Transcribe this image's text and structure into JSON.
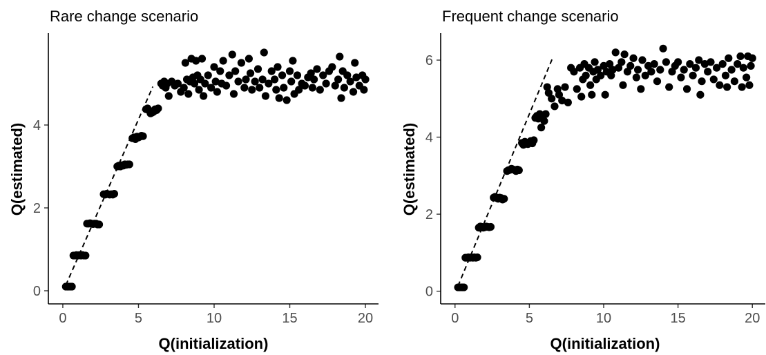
{
  "chart_data": [
    {
      "type": "scatter",
      "title": "Rare change scenario",
      "xlabel": "Q(initialization)",
      "ylabel": "Q(estimated)",
      "xlim": [
        -0.5,
        20.5
      ],
      "ylim": [
        -0.15,
        6.15
      ],
      "xticks": [
        0,
        5,
        10,
        15,
        20
      ],
      "yticks": [
        0,
        2,
        4
      ],
      "reference_line": {
        "style": "dashed",
        "slope": 0.833,
        "intercept": -0.03,
        "x_range": [
          0.2,
          5.95
        ]
      },
      "grid": false,
      "points": [
        [
          0.2,
          0.1
        ],
        [
          0.3,
          0.1
        ],
        [
          0.4,
          0.1
        ],
        [
          0.5,
          0.1
        ],
        [
          0.6,
          0.1
        ],
        [
          0.7,
          0.85
        ],
        [
          0.8,
          0.85
        ],
        [
          0.9,
          0.86
        ],
        [
          1.0,
          0.85
        ],
        [
          1.1,
          0.86
        ],
        [
          1.2,
          0.85
        ],
        [
          1.3,
          0.86
        ],
        [
          1.4,
          0.85
        ],
        [
          1.5,
          0.85
        ],
        [
          1.6,
          1.62
        ],
        [
          1.7,
          1.62
        ],
        [
          1.8,
          1.63
        ],
        [
          1.9,
          1.62
        ],
        [
          2.0,
          1.61
        ],
        [
          2.1,
          1.62
        ],
        [
          2.2,
          1.62
        ],
        [
          2.3,
          1.6
        ],
        [
          2.4,
          1.6
        ],
        [
          2.7,
          2.33
        ],
        [
          2.8,
          2.32
        ],
        [
          2.9,
          2.34
        ],
        [
          3.0,
          2.33
        ],
        [
          3.1,
          2.32
        ],
        [
          3.2,
          2.33
        ],
        [
          3.3,
          2.32
        ],
        [
          3.4,
          2.34
        ],
        [
          3.6,
          3.0
        ],
        [
          3.7,
          3.02
        ],
        [
          3.8,
          3.0
        ],
        [
          3.9,
          3.03
        ],
        [
          4.0,
          3.02
        ],
        [
          4.1,
          3.05
        ],
        [
          4.2,
          3.04
        ],
        [
          4.3,
          3.05
        ],
        [
          4.4,
          3.05
        ],
        [
          4.6,
          3.68
        ],
        [
          4.7,
          3.7
        ],
        [
          4.8,
          3.66
        ],
        [
          4.9,
          3.72
        ],
        [
          5.0,
          3.7
        ],
        [
          5.1,
          3.72
        ],
        [
          5.2,
          3.74
        ],
        [
          5.3,
          3.73
        ],
        [
          5.5,
          4.38
        ],
        [
          5.6,
          4.4
        ],
        [
          5.7,
          4.35
        ],
        [
          5.8,
          4.28
        ],
        [
          5.9,
          4.3
        ],
        [
          6.0,
          4.32
        ],
        [
          6.1,
          4.38
        ],
        [
          6.2,
          4.36
        ],
        [
          6.3,
          4.4
        ],
        [
          6.5,
          5.0
        ],
        [
          6.6,
          4.95
        ],
        [
          6.7,
          5.05
        ],
        [
          6.8,
          4.9
        ],
        [
          6.9,
          5.0
        ],
        [
          7.0,
          4.7
        ],
        [
          7.2,
          5.05
        ],
        [
          7.4,
          4.95
        ],
        [
          7.6,
          5.0
        ],
        [
          7.8,
          4.8
        ],
        [
          8.0,
          4.9
        ],
        [
          8.1,
          5.5
        ],
        [
          8.2,
          5.1
        ],
        [
          8.3,
          4.75
        ],
        [
          8.4,
          5.05
        ],
        [
          8.5,
          5.6
        ],
        [
          8.6,
          5.15
        ],
        [
          8.7,
          5.0
        ],
        [
          8.8,
          5.55
        ],
        [
          8.9,
          5.2
        ],
        [
          9.0,
          4.85
        ],
        [
          9.1,
          5.1
        ],
        [
          9.2,
          5.6
        ],
        [
          9.3,
          4.7
        ],
        [
          9.4,
          5.0
        ],
        [
          9.6,
          5.2
        ],
        [
          9.8,
          4.9
        ],
        [
          10.0,
          5.4
        ],
        [
          10.1,
          5.05
        ],
        [
          10.2,
          4.8
        ],
        [
          10.4,
          5.3
        ],
        [
          10.5,
          5.0
        ],
        [
          10.6,
          5.55
        ],
        [
          10.8,
          4.95
        ],
        [
          11.0,
          5.2
        ],
        [
          11.2,
          5.7
        ],
        [
          11.3,
          4.75
        ],
        [
          11.4,
          5.3
        ],
        [
          11.6,
          5.05
        ],
        [
          11.8,
          5.5
        ],
        [
          12.0,
          4.9
        ],
        [
          12.1,
          5.1
        ],
        [
          12.3,
          5.6
        ],
        [
          12.4,
          5.25
        ],
        [
          12.5,
          4.85
        ],
        [
          12.7,
          5.05
        ],
        [
          12.9,
          5.35
        ],
        [
          13.0,
          4.9
        ],
        [
          13.2,
          5.1
        ],
        [
          13.3,
          5.75
        ],
        [
          13.4,
          4.7
        ],
        [
          13.6,
          5.0
        ],
        [
          13.8,
          5.3
        ],
        [
          14.0,
          5.1
        ],
        [
          14.1,
          4.85
        ],
        [
          14.2,
          5.4
        ],
        [
          14.3,
          4.65
        ],
        [
          14.5,
          5.2
        ],
        [
          14.6,
          4.9
        ],
        [
          14.8,
          4.6
        ],
        [
          15.0,
          5.3
        ],
        [
          15.1,
          5.05
        ],
        [
          15.2,
          5.55
        ],
        [
          15.3,
          4.75
        ],
        [
          15.5,
          5.2
        ],
        [
          15.6,
          4.85
        ],
        [
          15.8,
          5.0
        ],
        [
          16.0,
          4.95
        ],
        [
          16.2,
          5.15
        ],
        [
          16.4,
          5.25
        ],
        [
          16.5,
          4.9
        ],
        [
          16.6,
          5.1
        ],
        [
          16.8,
          5.35
        ],
        [
          17.0,
          4.85
        ],
        [
          17.2,
          5.2
        ],
        [
          17.4,
          5.0
        ],
        [
          17.6,
          5.3
        ],
        [
          17.8,
          5.4
        ],
        [
          18.0,
          4.95
        ],
        [
          18.2,
          5.1
        ],
        [
          18.3,
          5.65
        ],
        [
          18.4,
          4.65
        ],
        [
          18.5,
          5.3
        ],
        [
          18.6,
          4.9
        ],
        [
          18.8,
          5.2
        ],
        [
          19.0,
          5.05
        ],
        [
          19.2,
          4.8
        ],
        [
          19.3,
          5.5
        ],
        [
          19.4,
          5.15
        ],
        [
          19.6,
          4.95
        ],
        [
          19.8,
          5.2
        ],
        [
          19.9,
          4.85
        ],
        [
          20.0,
          5.1
        ]
      ]
    },
    {
      "type": "scatter",
      "title": "Frequent change scenario",
      "xlabel": "Q(initialization)",
      "ylabel": "Q(estimated)",
      "xlim": [
        -0.5,
        20.5
      ],
      "ylim": [
        -0.15,
        6.7
      ],
      "xticks": [
        0,
        5,
        10,
        15,
        20
      ],
      "yticks": [
        0,
        2,
        4,
        6
      ],
      "reference_line": {
        "style": "dashed",
        "slope": 0.93,
        "intercept": -0.05,
        "x_range": [
          0.2,
          6.55
        ]
      },
      "grid": false,
      "points": [
        [
          0.2,
          0.1
        ],
        [
          0.3,
          0.1
        ],
        [
          0.4,
          0.1
        ],
        [
          0.5,
          0.1
        ],
        [
          0.6,
          0.1
        ],
        [
          0.7,
          0.87
        ],
        [
          0.8,
          0.87
        ],
        [
          0.9,
          0.88
        ],
        [
          1.0,
          0.87
        ],
        [
          1.1,
          0.88
        ],
        [
          1.2,
          0.87
        ],
        [
          1.3,
          0.88
        ],
        [
          1.4,
          0.87
        ],
        [
          1.5,
          0.88
        ],
        [
          1.6,
          1.65
        ],
        [
          1.7,
          1.68
        ],
        [
          1.8,
          1.67
        ],
        [
          1.9,
          1.65
        ],
        [
          2.0,
          1.66
        ],
        [
          2.1,
          1.68
        ],
        [
          2.2,
          1.67
        ],
        [
          2.3,
          1.66
        ],
        [
          2.4,
          1.67
        ],
        [
          2.6,
          2.43
        ],
        [
          2.7,
          2.45
        ],
        [
          2.8,
          2.42
        ],
        [
          2.9,
          2.4
        ],
        [
          3.0,
          2.43
        ],
        [
          3.1,
          2.42
        ],
        [
          3.2,
          2.38
        ],
        [
          3.3,
          2.4
        ],
        [
          3.5,
          3.12
        ],
        [
          3.6,
          3.14
        ],
        [
          3.7,
          3.15
        ],
        [
          3.8,
          3.18
        ],
        [
          3.9,
          3.16
        ],
        [
          4.0,
          3.15
        ],
        [
          4.1,
          3.12
        ],
        [
          4.2,
          3.16
        ],
        [
          4.3,
          3.14
        ],
        [
          4.5,
          3.85
        ],
        [
          4.6,
          3.8
        ],
        [
          4.7,
          3.88
        ],
        [
          4.8,
          3.84
        ],
        [
          4.9,
          3.82
        ],
        [
          5.0,
          3.86
        ],
        [
          5.1,
          3.9
        ],
        [
          5.2,
          3.84
        ],
        [
          5.3,
          3.92
        ],
        [
          5.4,
          4.5
        ],
        [
          5.5,
          4.55
        ],
        [
          5.6,
          4.48
        ],
        [
          5.7,
          4.6
        ],
        [
          5.8,
          4.25
        ],
        [
          5.9,
          4.5
        ],
        [
          6.0,
          4.42
        ],
        [
          6.1,
          4.6
        ],
        [
          6.2,
          5.3
        ],
        [
          6.3,
          5.15
        ],
        [
          6.5,
          5.0
        ],
        [
          6.7,
          4.8
        ],
        [
          6.9,
          5.25
        ],
        [
          7.0,
          5.1
        ],
        [
          7.2,
          4.95
        ],
        [
          7.4,
          5.3
        ],
        [
          7.6,
          4.9
        ],
        [
          7.8,
          5.8
        ],
        [
          8.0,
          5.7
        ],
        [
          8.2,
          5.25
        ],
        [
          8.4,
          5.8
        ],
        [
          8.5,
          5.05
        ],
        [
          8.6,
          5.5
        ],
        [
          8.7,
          5.9
        ],
        [
          8.8,
          5.6
        ],
        [
          9.0,
          5.8
        ],
        [
          9.1,
          5.35
        ],
        [
          9.2,
          5.1
        ],
        [
          9.3,
          5.7
        ],
        [
          9.4,
          5.95
        ],
        [
          9.5,
          5.5
        ],
        [
          9.6,
          5.75
        ],
        [
          9.8,
          5.6
        ],
        [
          10.0,
          5.85
        ],
        [
          10.1,
          5.1
        ],
        [
          10.2,
          5.7
        ],
        [
          10.4,
          5.9
        ],
        [
          10.5,
          5.6
        ],
        [
          10.6,
          5.75
        ],
        [
          10.8,
          6.2
        ],
        [
          11.0,
          5.8
        ],
        [
          11.2,
          5.95
        ],
        [
          11.3,
          5.35
        ],
        [
          11.4,
          6.15
        ],
        [
          11.6,
          5.7
        ],
        [
          11.8,
          5.85
        ],
        [
          12.0,
          6.05
        ],
        [
          12.2,
          5.55
        ],
        [
          12.3,
          5.75
        ],
        [
          12.5,
          5.25
        ],
        [
          12.6,
          6.0
        ],
        [
          12.8,
          5.6
        ],
        [
          13.0,
          5.85
        ],
        [
          13.2,
          5.7
        ],
        [
          13.4,
          5.9
        ],
        [
          13.6,
          5.45
        ],
        [
          13.8,
          5.75
        ],
        [
          14.0,
          6.3
        ],
        [
          14.2,
          5.95
        ],
        [
          14.4,
          5.3
        ],
        [
          14.6,
          5.7
        ],
        [
          14.8,
          5.85
        ],
        [
          15.0,
          5.95
        ],
        [
          15.2,
          5.55
        ],
        [
          15.4,
          5.75
        ],
        [
          15.6,
          5.25
        ],
        [
          15.8,
          5.9
        ],
        [
          16.0,
          5.6
        ],
        [
          16.2,
          5.8
        ],
        [
          16.4,
          6.0
        ],
        [
          16.5,
          5.1
        ],
        [
          16.6,
          5.45
        ],
        [
          16.8,
          5.9
        ],
        [
          17.0,
          5.7
        ],
        [
          17.2,
          5.95
        ],
        [
          17.4,
          5.5
        ],
        [
          17.6,
          5.8
        ],
        [
          17.8,
          5.35
        ],
        [
          18.0,
          5.9
        ],
        [
          18.2,
          5.6
        ],
        [
          18.3,
          5.3
        ],
        [
          18.4,
          6.05
        ],
        [
          18.6,
          5.75
        ],
        [
          18.8,
          5.45
        ],
        [
          19.0,
          5.9
        ],
        [
          19.2,
          6.1
        ],
        [
          19.3,
          5.3
        ],
        [
          19.4,
          5.8
        ],
        [
          19.6,
          5.55
        ],
        [
          19.7,
          6.1
        ],
        [
          19.8,
          5.35
        ],
        [
          19.9,
          5.85
        ],
        [
          20.0,
          6.05
        ]
      ]
    }
  ]
}
